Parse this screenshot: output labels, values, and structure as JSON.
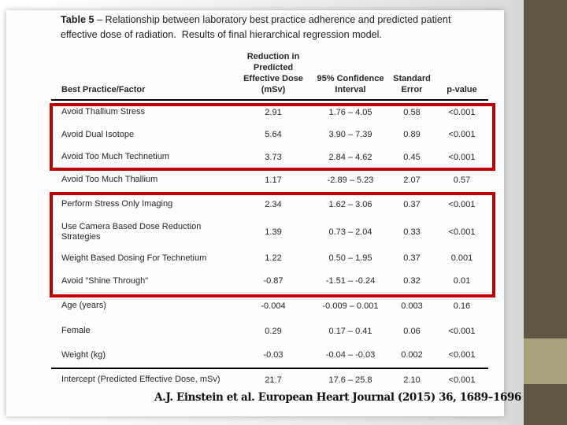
{
  "slide": {
    "title_bold": "Table 5",
    "title_line1": " – Relationship between laboratory best practice adherence and predicted patient",
    "title_line2": "effective dose of radiation.  Results of final hierarchical regression model.",
    "citation": "A.J. Einstein et al. European Heart Journal (2015) 36, 1689–1696"
  },
  "table": {
    "columns": [
      {
        "id": "factor",
        "label": "Best Practice/Factor"
      },
      {
        "id": "reduction",
        "label": "Reduction in\nPredicted\nEffective Dose\n(mSv)"
      },
      {
        "id": "ci",
        "label": "95% Confidence\nInterval"
      },
      {
        "id": "se",
        "label": "Standard\nError"
      },
      {
        "id": "p",
        "label": "p-value"
      }
    ],
    "rows": [
      {
        "factor": "Avoid Thallium Stress",
        "reduction": "2.91",
        "ci": "1.76 – 4.05",
        "se": "0.58",
        "p": "<0.001"
      },
      {
        "factor": "Avoid Dual Isotope",
        "reduction": "5.64",
        "ci": "3.90 – 7.39",
        "se": "0.89",
        "p": "<0.001"
      },
      {
        "factor": "Avoid Too Much Technetium",
        "reduction": "3.73",
        "ci": "2.84 – 4.62",
        "se": "0.45",
        "p": "<0.001"
      },
      {
        "factor": "Avoid Too Much Thallium",
        "reduction": "1.17",
        "ci": "-2.89 – 5.23",
        "se": "2.07",
        "p": "0.57"
      },
      {
        "factor": "Perform Stress Only Imaging",
        "reduction": "2.34",
        "ci": "1.62 – 3.06",
        "se": "0.37",
        "p": "<0.001"
      },
      {
        "factor": "Use Camera Based Dose Reduction Strategies",
        "reduction": "1.39",
        "ci": "0.73 – 2.04",
        "se": "0.33",
        "p": "<0.001"
      },
      {
        "factor": "Weight Based Dosing For Technetium",
        "reduction": "1.22",
        "ci": "0.50 – 1.95",
        "se": "0.37",
        "p": "0.001"
      },
      {
        "factor": "Avoid \"Shine Through\"",
        "reduction": "-0.87",
        "ci": "-1.51 – -0.24",
        "se": "0.32",
        "p": "0.01"
      },
      {
        "factor": "Age (years)",
        "reduction": "-0.004",
        "ci": "-0.009 – 0.001",
        "se": "0.003",
        "p": "0.16"
      },
      {
        "factor": "Female",
        "reduction": "0.29",
        "ci": "0.17 – 0.41",
        "se": "0.06",
        "p": "<0.001"
      },
      {
        "factor": "Weight (kg)",
        "reduction": "-0.03",
        "ci": "-0.04 – -0.03",
        "se": "0.002",
        "p": "<0.001"
      },
      {
        "factor": "Intercept (Predicted Effective Dose, mSv)",
        "reduction": "21.7",
        "ci": "17.6 – 25.8",
        "se": "2.10",
        "p": "<0.001"
      }
    ]
  },
  "highlights": [
    {
      "name": "top-practices-box",
      "rows_covered": [
        "Avoid Thallium Stress",
        "Avoid Dual Isotope",
        "Avoid Too Much Technetium"
      ]
    },
    {
      "name": "significant-practices-box",
      "rows_covered": [
        "Perform Stress Only Imaging",
        "Use Camera Based Dose Reduction Strategies",
        "Weight Based Dosing For Technetium",
        "Avoid \"Shine Through\""
      ]
    }
  ],
  "colors": {
    "highlight": "#c00000",
    "side_band": "#5f5744",
    "side_accent": "#a9a17c"
  }
}
